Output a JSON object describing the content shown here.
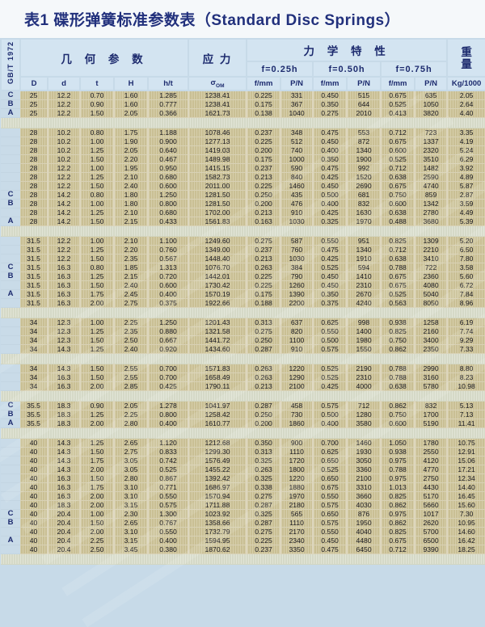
{
  "title": "表1 碟形弹簧标准参数表（Standard Disc Springs）",
  "standard": "GB/T 1972",
  "header": {
    "geometry": "几 何 参 数",
    "stress": "应 力",
    "stress_symbol": "σ",
    "stress_sub": "OM",
    "mechanical": "力 学 特 性",
    "weight_line1": "重",
    "weight_line2": "量",
    "weight_unit": "Kg/1000",
    "deflections": [
      "f=0.25h",
      "f=0.50h",
      "f=0.75h"
    ],
    "cols": [
      "D",
      "d",
      "t",
      "H",
      "h/t"
    ],
    "sub_cols": [
      "f/mm",
      "P/N",
      "f/mm",
      "P/N",
      "f/mm",
      "P/N"
    ]
  },
  "rows": [
    {
      "g": "C",
      "c": [
        "25",
        "12.2",
        "0.70",
        "1.60",
        "1.285",
        "1238.41",
        "0.225",
        "331",
        "0.450",
        "515",
        "0.675",
        "635",
        "2.05"
      ]
    },
    {
      "g": "B",
      "c": [
        "25",
        "12.2",
        "0.90",
        "1.60",
        "0.777",
        "1238.41",
        "0.175",
        "367",
        "0.350",
        "644",
        "0.525",
        "1050",
        "2.64"
      ]
    },
    {
      "g": "A",
      "c": [
        "25",
        "12.2",
        "1.50",
        "2.05",
        "0.366",
        "1621.73",
        "0.138",
        "1040",
        "0.275",
        "2010",
        "0.413",
        "3820",
        "4.40"
      ]
    },
    {
      "gap": true
    },
    {
      "g": "",
      "c": [
        "28",
        "10.2",
        "0.80",
        "1.75",
        "1.188",
        "1078.46",
        "0.237",
        "348",
        "0.475",
        "553",
        "0.712",
        "723",
        "3.35"
      ]
    },
    {
      "g": "",
      "c": [
        "28",
        "10.2",
        "1.00",
        "1.90",
        "0.900",
        "1277.13",
        "0.225",
        "512",
        "0.450",
        "872",
        "0.675",
        "1337",
        "4.19"
      ]
    },
    {
      "g": "",
      "c": [
        "28",
        "10.2",
        "1.25",
        "2.05",
        "0.640",
        "1419.03",
        "0.200",
        "740",
        "0.400",
        "1340",
        "0.600",
        "2320",
        "5.24"
      ]
    },
    {
      "g": "",
      "c": [
        "28",
        "10.2",
        "1.50",
        "2.20",
        "0.467",
        "1489.98",
        "0.175",
        "1000",
        "0.350",
        "1900",
        "0.525",
        "3510",
        "6.29"
      ]
    },
    {
      "g": "",
      "c": [
        "28",
        "12.2",
        "1.00",
        "1.95",
        "0.950",
        "1415.15",
        "0.237",
        "590",
        "0.475",
        "992",
        "0.712",
        "1482",
        "3.92"
      ]
    },
    {
      "g": "",
      "c": [
        "28",
        "12.2",
        "1.25",
        "2.10",
        "0.680",
        "1582.73",
        "0.213",
        "840",
        "0.425",
        "1520",
        "0.638",
        "2590",
        "4.89"
      ]
    },
    {
      "g": "",
      "c": [
        "28",
        "12.2",
        "1.50",
        "2.40",
        "0.600",
        "2011.00",
        "0.225",
        "1460",
        "0.450",
        "2690",
        "0.675",
        "4740",
        "5.87"
      ]
    },
    {
      "g": "C",
      "c": [
        "28",
        "14.2",
        "0.80",
        "1.80",
        "1.250",
        "1281.50",
        "0.250",
        "435",
        "0.500",
        "681",
        "0.750",
        "859",
        "2.87"
      ]
    },
    {
      "g": "B",
      "c": [
        "28",
        "14.2",
        "1.00",
        "1.80",
        "0.800",
        "1281.50",
        "0.200",
        "476",
        "0.400",
        "832",
        "0.600",
        "1342",
        "3.59"
      ]
    },
    {
      "g": "",
      "c": [
        "28",
        "14.2",
        "1.25",
        "2.10",
        "0.680",
        "1702.00",
        "0.213",
        "910",
        "0.425",
        "1630",
        "0.638",
        "2780",
        "4.49"
      ]
    },
    {
      "g": "A",
      "c": [
        "28",
        "14.2",
        "1.50",
        "2.15",
        "0.433",
        "1561.83",
        "0.163",
        "1030",
        "0.325",
        "1970",
        "0.488",
        "3680",
        "5.39"
      ]
    },
    {
      "gap": true
    },
    {
      "g": "",
      "c": [
        "31.5",
        "12.2",
        "1.00",
        "2.10",
        "1.100",
        "1249.60",
        "0.275",
        "587",
        "0.550",
        "951",
        "0.825",
        "1309",
        "5.20"
      ]
    },
    {
      "g": "",
      "c": [
        "31.5",
        "12.2",
        "1.25",
        "2.20",
        "0.760",
        "1349.00",
        "0.237",
        "760",
        "0.475",
        "1340",
        "0.712",
        "2210",
        "6.50"
      ]
    },
    {
      "g": "",
      "c": [
        "31.5",
        "12.2",
        "1.50",
        "2.35",
        "0.567",
        "1448.40",
        "0.213",
        "1030",
        "0.425",
        "1910",
        "0.638",
        "3410",
        "7.80"
      ]
    },
    {
      "g": "C",
      "c": [
        "31.5",
        "16.3",
        "0.80",
        "1.85",
        "1.313",
        "1076.70",
        "0.263",
        "384",
        "0.525",
        "594",
        "0.788",
        "722",
        "3.58"
      ]
    },
    {
      "g": "B",
      "c": [
        "31.5",
        "16.3",
        "1.25",
        "2.15",
        "0.720",
        "1442.01",
        "0.225",
        "790",
        "0.450",
        "1410",
        "0.675",
        "2360",
        "5.60"
      ]
    },
    {
      "g": "",
      "c": [
        "31.5",
        "16.3",
        "1.50",
        "2.40",
        "0.600",
        "1730.42",
        "0.225",
        "1260",
        "0.450",
        "2310",
        "0.675",
        "4080",
        "6.72"
      ]
    },
    {
      "g": "A",
      "c": [
        "31.5",
        "16.3",
        "1.75",
        "2.45",
        "0.400",
        "1570.19",
        "0.175",
        "1390",
        "0.350",
        "2670",
        "0.525",
        "5040",
        "7.84"
      ]
    },
    {
      "g": "",
      "c": [
        "31.5",
        "16.3",
        "2.00",
        "2.75",
        "0.375",
        "1922.66",
        "0.188",
        "2200",
        "0.375",
        "4240",
        "0.563",
        "8050",
        "8.96"
      ]
    },
    {
      "gap": true
    },
    {
      "g": "",
      "c": [
        "34",
        "12.3",
        "1.00",
        "2.25",
        "1.250",
        "1201.43",
        "0.313",
        "637",
        "0.625",
        "998",
        "0.938",
        "1258",
        "6.19"
      ]
    },
    {
      "g": "",
      "c": [
        "34",
        "12.3",
        "1.25",
        "2.35",
        "0.880",
        "1321.58",
        "0.275",
        "820",
        "0.550",
        "1400",
        "0.825",
        "2160",
        "7.74"
      ]
    },
    {
      "g": "",
      "c": [
        "34",
        "12.3",
        "1.50",
        "2.50",
        "0.667",
        "1441.72",
        "0.250",
        "1100",
        "0.500",
        "1980",
        "0.750",
        "3400",
        "9.29"
      ]
    },
    {
      "g": "",
      "c": [
        "34",
        "14.3",
        "1.25",
        "2.40",
        "0.920",
        "1434.60",
        "0.287",
        "910",
        "0.575",
        "1550",
        "0.862",
        "2350",
        "7.33"
      ]
    },
    {
      "gap": true
    },
    {
      "g": "",
      "c": [
        "34",
        "14.3",
        "1.50",
        "2.55",
        "0.700",
        "1571.83",
        "0.263",
        "1220",
        "0.525",
        "2190",
        "0.788",
        "2990",
        "8.80"
      ]
    },
    {
      "g": "",
      "c": [
        "34",
        "16.3",
        "1.50",
        "2.55",
        "0.700",
        "1658.49",
        "0.263",
        "1290",
        "0.525",
        "2310",
        "0.788",
        "3160",
        "8.23"
      ]
    },
    {
      "g": "",
      "c": [
        "34",
        "16.3",
        "2.00",
        "2.85",
        "0.425",
        "1790.11",
        "0.213",
        "2100",
        "0.425",
        "4000",
        "0.638",
        "5780",
        "10.98"
      ]
    },
    {
      "gap": true
    },
    {
      "g": "C",
      "c": [
        "35.5",
        "18.3",
        "0.90",
        "2.05",
        "1.278",
        "1041.97",
        "0.287",
        "458",
        "0.575",
        "712",
        "0.862",
        "832",
        "5.13"
      ]
    },
    {
      "g": "B",
      "c": [
        "35.5",
        "18.3",
        "1.25",
        "2.25",
        "0.800",
        "1258.42",
        "0.250",
        "730",
        "0.500",
        "1280",
        "0.750",
        "1700",
        "7.13"
      ]
    },
    {
      "g": "A",
      "c": [
        "35.5",
        "18.3",
        "2.00",
        "2.80",
        "0.400",
        "1610.77",
        "0.200",
        "1860",
        "0.400",
        "3580",
        "0.600",
        "5190",
        "11.41"
      ]
    },
    {
      "gap": true
    },
    {
      "g": "",
      "c": [
        "40",
        "14.3",
        "1.25",
        "2.65",
        "1.120",
        "1212.68",
        "0.350",
        "900",
        "0.700",
        "1460",
        "1.050",
        "1780",
        "10.75"
      ]
    },
    {
      "g": "",
      "c": [
        "40",
        "14.3",
        "1.50",
        "2.75",
        "0.833",
        "1299.30",
        "0.313",
        "1110",
        "0.625",
        "1930",
        "0.938",
        "2550",
        "12.91"
      ]
    },
    {
      "g": "",
      "c": [
        "40",
        "14.3",
        "1.75",
        "3.05",
        "0.742",
        "1576.49",
        "0.325",
        "1720",
        "0.650",
        "3050",
        "0.975",
        "4120",
        "15.06"
      ]
    },
    {
      "g": "",
      "c": [
        "40",
        "14.3",
        "2.00",
        "3.05",
        "0.525",
        "1455.22",
        "0.263",
        "1800",
        "0.525",
        "3360",
        "0.788",
        "4770",
        "17.21"
      ]
    },
    {
      "g": "",
      "c": [
        "40",
        "16.3",
        "1.50",
        "2.80",
        "0.867",
        "1392.42",
        "0.325",
        "1220",
        "0.650",
        "2100",
        "0.975",
        "2750",
        "12.34"
      ]
    },
    {
      "g": "",
      "c": [
        "40",
        "16.3",
        "1.75",
        "3.10",
        "0.771",
        "1686.97",
        "0.338",
        "1880",
        "0.675",
        "3310",
        "1.013",
        "4430",
        "14.40"
      ]
    },
    {
      "g": "",
      "c": [
        "40",
        "16.3",
        "2.00",
        "3.10",
        "0.550",
        "1570.94",
        "0.275",
        "1970",
        "0.550",
        "3660",
        "0.825",
        "5170",
        "16.45"
      ]
    },
    {
      "g": "",
      "c": [
        "40",
        "18.3",
        "2.00",
        "3.15",
        "0.575",
        "1711.88",
        "0.287",
        "2180",
        "0.575",
        "4030",
        "0.862",
        "5660",
        "15.60"
      ]
    },
    {
      "g": "C",
      "c": [
        "40",
        "20.4",
        "1.00",
        "2.30",
        "1.300",
        "1023.92",
        "0.325",
        "565",
        "0.650",
        "876",
        "0.975",
        "1017",
        "7.30"
      ]
    },
    {
      "g": "B",
      "c": [
        "40",
        "20.4",
        "1.50",
        "2.65",
        "0.767",
        "1358.66",
        "0.287",
        "1110",
        "0.575",
        "1950",
        "0.862",
        "2620",
        "10.95"
      ]
    },
    {
      "g": "",
      "c": [
        "40",
        "20.4",
        "2.00",
        "3.10",
        "0.550",
        "1732.79",
        "0.275",
        "2170",
        "0.550",
        "4040",
        "0.825",
        "5700",
        "14.60"
      ]
    },
    {
      "g": "A",
      "c": [
        "40",
        "20.4",
        "2.25",
        "3.15",
        "0.400",
        "1594.95",
        "0.225",
        "2340",
        "0.450",
        "4480",
        "0.675",
        "6500",
        "16.42"
      ]
    },
    {
      "g": "",
      "c": [
        "40",
        "20.4",
        "2.50",
        "3.45",
        "0.380",
        "1870.62",
        "0.237",
        "3350",
        "0.475",
        "6450",
        "0.712",
        "9390",
        "18.25"
      ]
    },
    {
      "gap": true
    }
  ]
}
